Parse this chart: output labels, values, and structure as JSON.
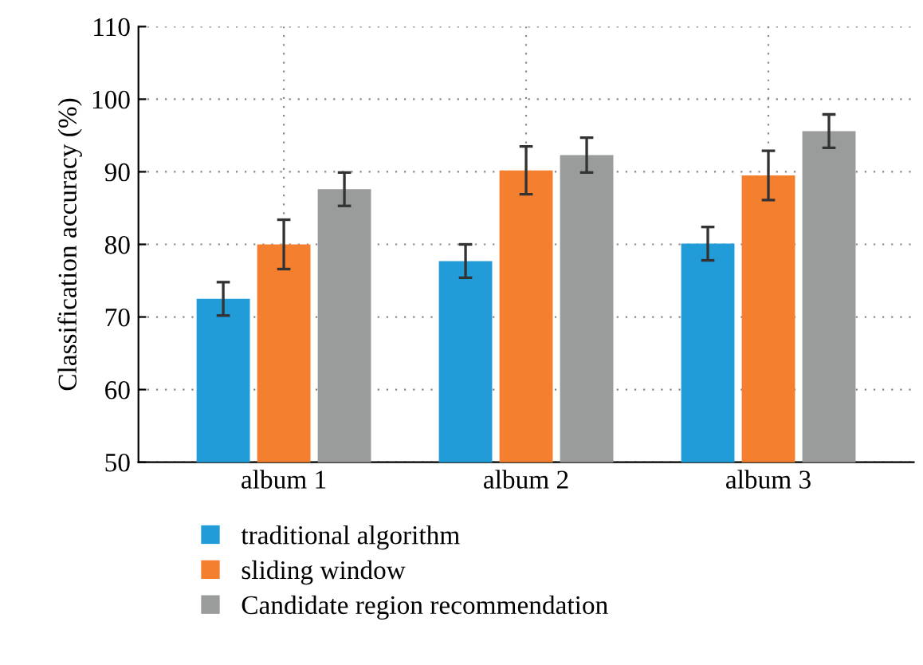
{
  "chart_data": {
    "type": "bar",
    "ylabel": "Classification accuracy (%)",
    "categories": [
      "album 1",
      "album 2",
      "album 3"
    ],
    "series": [
      {
        "name": "traditional algorithm",
        "color": "#219cd8",
        "values": [
          72.5,
          77.7,
          80.1
        ],
        "errors": [
          2.3,
          2.3,
          2.3
        ]
      },
      {
        "name": "sliding window",
        "color": "#f47f2e",
        "values": [
          80.0,
          90.2,
          89.5
        ],
        "errors": [
          3.4,
          3.3,
          3.4
        ]
      },
      {
        "name": "Candidate region recommendation",
        "color": "#9a9c9c",
        "values": [
          87.6,
          92.3,
          95.6
        ],
        "errors": [
          2.3,
          2.4,
          2.3
        ]
      }
    ],
    "ylim": [
      50,
      110
    ],
    "yticks": [
      50,
      60,
      70,
      80,
      90,
      100,
      110
    ],
    "grid": true,
    "legend": "bottom"
  }
}
